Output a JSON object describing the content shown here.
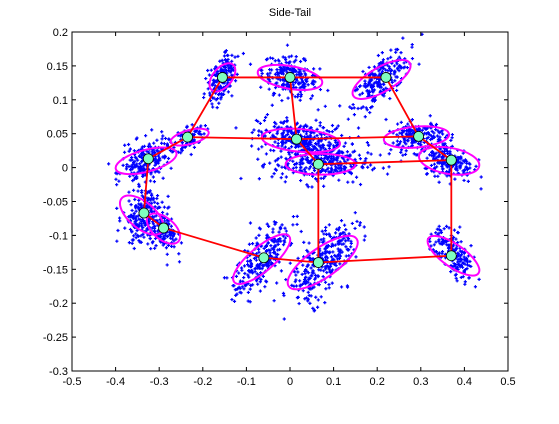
{
  "chart_data": {
    "type": "scatter",
    "title": "Side-Tail",
    "xlabel": "",
    "ylabel": "",
    "xlim": [
      -0.5,
      0.5
    ],
    "ylim": [
      -0.3,
      0.2
    ],
    "grid": false,
    "xticks": [
      "-0.5",
      "-0.4",
      "-0.3",
      "-0.2",
      "-0.1",
      "0",
      "0.1",
      "0.2",
      "0.3",
      "0.4",
      "0.5"
    ],
    "yticks": [
      "-0.3",
      "-0.25",
      "-0.2",
      "-0.15",
      "-0.1",
      "-0.05",
      "0",
      "0.05",
      "0.1",
      "0.15",
      "0.2"
    ],
    "colors": {
      "points": "#0000ff",
      "ellipses": "#ff00ff",
      "nodes": "#7fffbf",
      "edges": "#ff0000",
      "axes": "#000000"
    },
    "nodes": [
      {
        "x": -0.155,
        "y": 0.133
      },
      {
        "x": 0.0,
        "y": 0.133
      },
      {
        "x": 0.22,
        "y": 0.133
      },
      {
        "x": -0.235,
        "y": 0.045
      },
      {
        "x": 0.015,
        "y": 0.042
      },
      {
        "x": 0.295,
        "y": 0.046
      },
      {
        "x": -0.325,
        "y": 0.013
      },
      {
        "x": 0.065,
        "y": 0.005
      },
      {
        "x": 0.37,
        "y": 0.011
      },
      {
        "x": -0.335,
        "y": -0.067
      },
      {
        "x": -0.29,
        "y": -0.089
      },
      {
        "x": -0.06,
        "y": -0.133
      },
      {
        "x": 0.065,
        "y": -0.14
      },
      {
        "x": 0.37,
        "y": -0.13
      }
    ],
    "edges": [
      [
        0,
        1
      ],
      [
        1,
        2
      ],
      [
        0,
        3
      ],
      [
        3,
        4
      ],
      [
        1,
        4
      ],
      [
        4,
        5
      ],
      [
        2,
        5
      ],
      [
        5,
        8
      ],
      [
        3,
        6
      ],
      [
        6,
        9
      ],
      [
        9,
        10
      ],
      [
        7,
        8
      ],
      [
        4,
        7
      ],
      [
        7,
        12
      ],
      [
        10,
        11
      ],
      [
        11,
        12
      ],
      [
        12,
        13
      ],
      [
        8,
        13
      ]
    ],
    "clusters": [
      {
        "x": -0.155,
        "y": 0.133,
        "sx": 0.022,
        "sy": 0.013,
        "angle": 50,
        "rx": 0.038,
        "ry": 0.022,
        "n": 170
      },
      {
        "x": 0.0,
        "y": 0.133,
        "sx": 0.032,
        "sy": 0.014,
        "angle": -10,
        "rx": 0.075,
        "ry": 0.026,
        "n": 240
      },
      {
        "x": 0.21,
        "y": 0.13,
        "sx": 0.036,
        "sy": 0.014,
        "angle": 30,
        "rx": 0.075,
        "ry": 0.028,
        "n": 240
      },
      {
        "x": -0.23,
        "y": 0.045,
        "sx": 0.018,
        "sy": 0.009,
        "angle": 15,
        "rx": 0.045,
        "ry": 0.016,
        "n": 90
      },
      {
        "x": 0.025,
        "y": 0.04,
        "sx": 0.05,
        "sy": 0.014,
        "angle": -5,
        "rx": 0.09,
        "ry": 0.026,
        "n": 320
      },
      {
        "x": 0.29,
        "y": 0.045,
        "sx": 0.03,
        "sy": 0.011,
        "angle": 5,
        "rx": 0.075,
        "ry": 0.024,
        "n": 180
      },
      {
        "x": -0.33,
        "y": 0.01,
        "sx": 0.028,
        "sy": 0.014,
        "angle": 15,
        "rx": 0.072,
        "ry": 0.025,
        "n": 220
      },
      {
        "x": 0.07,
        "y": 0.005,
        "sx": 0.055,
        "sy": 0.014,
        "angle": 0,
        "rx": 0.08,
        "ry": 0.024,
        "n": 260
      },
      {
        "x": 0.365,
        "y": 0.01,
        "sx": 0.028,
        "sy": 0.013,
        "angle": -10,
        "rx": 0.07,
        "ry": 0.03,
        "n": 200
      },
      {
        "x": -0.34,
        "y": -0.07,
        "sx": 0.018,
        "sy": 0.022,
        "angle": -40,
        "rx": 0.06,
        "ry": 0.03,
        "n": 200
      },
      {
        "x": -0.29,
        "y": -0.09,
        "sx": 0.018,
        "sy": 0.014,
        "angle": -40,
        "rx": 0.045,
        "ry": 0.025,
        "n": 130
      },
      {
        "x": -0.065,
        "y": -0.135,
        "sx": 0.04,
        "sy": 0.016,
        "angle": 40,
        "rx": 0.082,
        "ry": 0.028,
        "n": 240
      },
      {
        "x": 0.075,
        "y": -0.14,
        "sx": 0.042,
        "sy": 0.02,
        "angle": 35,
        "rx": 0.095,
        "ry": 0.034,
        "n": 300
      },
      {
        "x": 0.375,
        "y": -0.13,
        "sx": 0.03,
        "sy": 0.013,
        "angle": -35,
        "rx": 0.07,
        "ry": 0.026,
        "n": 180
      }
    ]
  }
}
